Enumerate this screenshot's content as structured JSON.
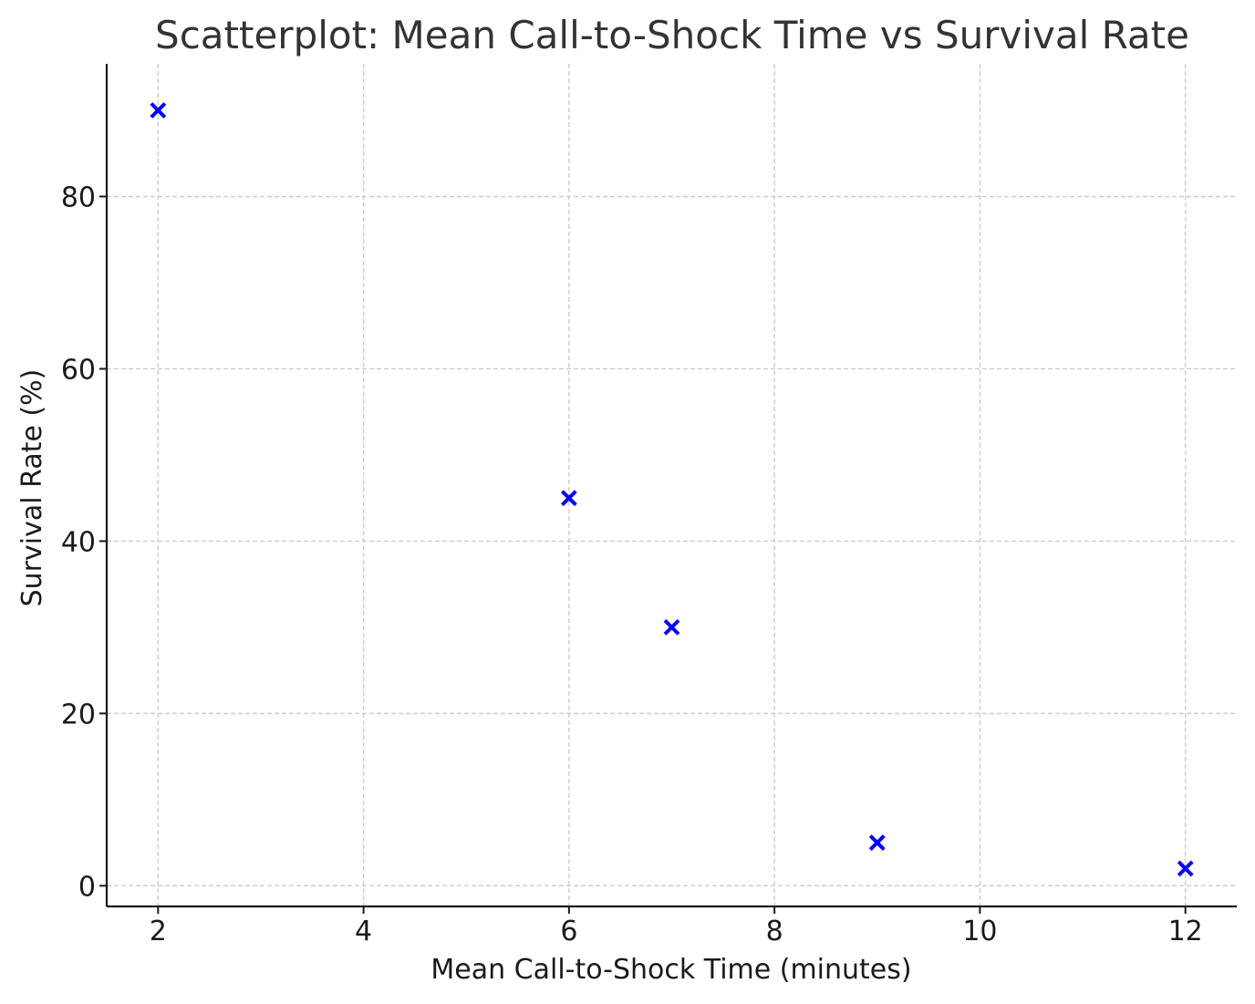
{
  "chart_data": {
    "type": "scatter",
    "title": "Scatterplot: Mean Call-to-Shock Time vs Survival Rate",
    "xlabel": "Mean Call-to-Shock Time (minutes)",
    "ylabel": "Survival Rate (%)",
    "xlim": [
      1.5,
      12.5
    ],
    "ylim": [
      -2.4,
      95.4
    ],
    "xticks": [
      2,
      4,
      6,
      8,
      10,
      12
    ],
    "yticks": [
      0,
      20,
      40,
      60,
      80
    ],
    "grid": true,
    "marker": "x",
    "color": "#0000ff",
    "points": [
      {
        "x": 2,
        "y": 90
      },
      {
        "x": 6,
        "y": 45
      },
      {
        "x": 7,
        "y": 30
      },
      {
        "x": 9,
        "y": 5
      },
      {
        "x": 12,
        "y": 2
      }
    ]
  }
}
